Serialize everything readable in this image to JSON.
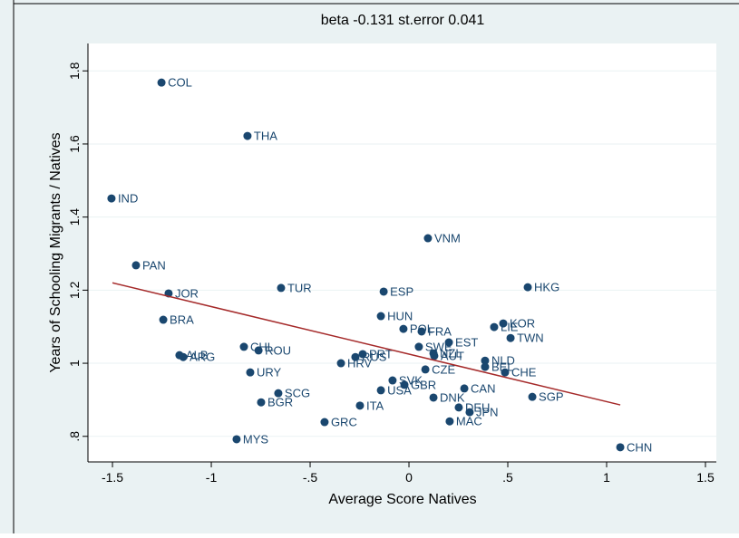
{
  "chart_data": {
    "type": "scatter",
    "title": "beta -0.131 st.error 0.041",
    "x_label": "Average Score Natives",
    "y_label": "Years of Schooling Migrants / Natives",
    "color": "#1a476f",
    "labels": [
      "COL",
      "THA",
      "IND",
      "VNM",
      "PAN",
      "TUR",
      "JOR",
      "ESP",
      "HKG",
      "BRA",
      "HUN",
      "POL",
      "FRA",
      "KOR",
      "LIE",
      "TWN",
      "EST",
      "SWE",
      "NZL",
      "AUT",
      "CHL",
      "ROU",
      "ALB",
      "ARG",
      "PRT",
      "RUS",
      "HRV",
      "NLD",
      "BEL",
      "CZE",
      "CHE",
      "URY",
      "SVK",
      "GBR",
      "USA",
      "SCG",
      "CAN",
      "DNK",
      "SGP",
      "BGR",
      "ITA",
      "DEU",
      "JPN",
      "GRC",
      "MAC",
      "MYS",
      "CHN"
    ],
    "x": [
      -1.252,
      -0.817,
      -1.505,
      0.096,
      -1.381,
      -0.647,
      -1.216,
      -0.128,
      0.601,
      -1.243,
      -0.142,
      -0.028,
      0.064,
      0.477,
      0.431,
      0.514,
      0.202,
      0.05,
      0.124,
      0.128,
      -0.835,
      -0.761,
      -1.161,
      -1.142,
      -0.234,
      -0.271,
      -0.344,
      0.385,
      0.385,
      0.083,
      0.486,
      -0.803,
      -0.083,
      -0.023,
      -0.142,
      -0.661,
      0.28,
      0.124,
      0.624,
      -0.748,
      -0.248,
      0.252,
      0.307,
      -0.427,
      0.206,
      -0.872,
      1.069
    ],
    "values": [
      1.768,
      1.622,
      1.451,
      1.342,
      1.268,
      1.206,
      1.191,
      1.196,
      1.208,
      1.119,
      1.129,
      1.094,
      1.087,
      1.109,
      1.099,
      1.069,
      1.057,
      1.045,
      1.027,
      1.02,
      1.045,
      1.035,
      1.022,
      1.017,
      1.025,
      1.017,
      1.0,
      1.007,
      0.99,
      0.983,
      0.975,
      0.975,
      0.953,
      0.941,
      0.926,
      0.918,
      0.931,
      0.906,
      0.908,
      0.893,
      0.884,
      0.879,
      0.866,
      0.839,
      0.841,
      0.792,
      0.77
    ],
    "fit": {
      "x": [
        -1.5,
        1.069
      ],
      "y": [
        1.22,
        0.886
      ],
      "color": "#a52a2a"
    },
    "xlim": [
      -1.624,
      1.555
    ],
    "ylim": [
      0.73,
      1.875
    ],
    "xticks": [
      {
        "value": -1.5,
        "label": "-1.5"
      },
      -1,
      {
        "value": -0.5,
        "label": "-.5"
      },
      0,
      {
        "value": 0.5,
        "label": ".5"
      },
      1,
      1.5
    ],
    "yticks": [
      {
        "value": 0.8,
        "label": ".8"
      },
      1,
      1.2,
      1.4,
      1.6,
      1.8
    ],
    "grid": true
  }
}
